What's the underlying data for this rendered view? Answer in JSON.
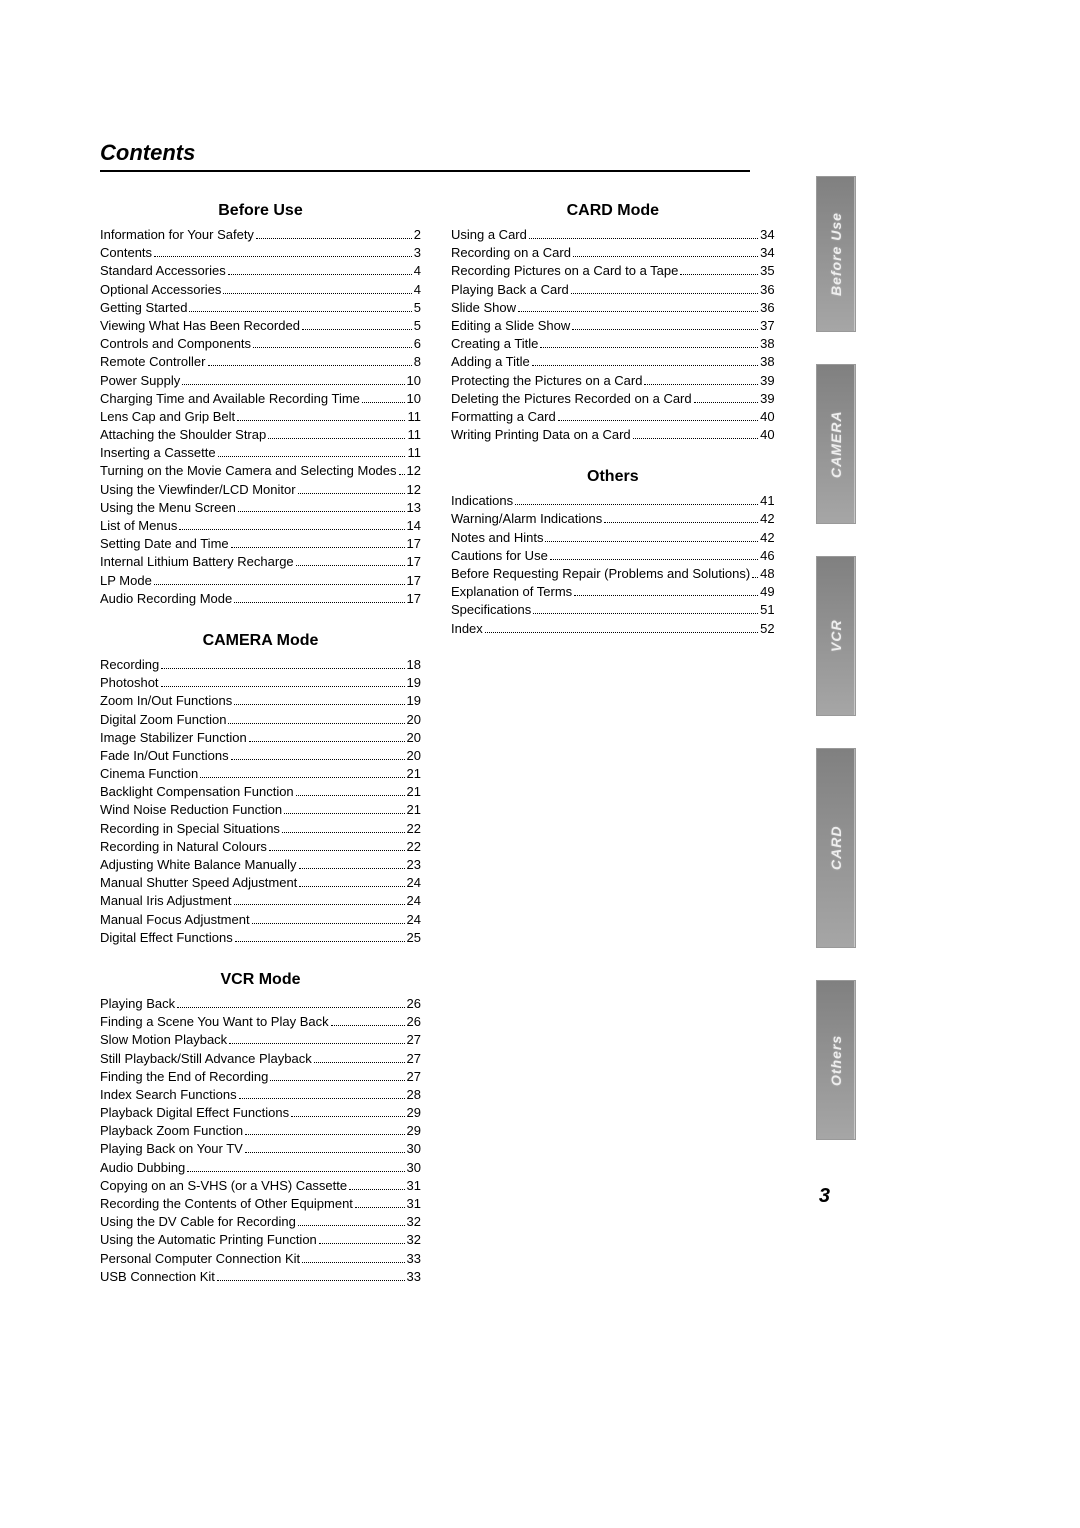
{
  "title": "Contents",
  "page_number": "3",
  "side_tabs": [
    "Before Use",
    "CAMERA",
    "VCR",
    "CARD",
    "Others"
  ],
  "columns": {
    "left": [
      {
        "heading": "Before Use",
        "entries": [
          {
            "label": "Information for Your Safety",
            "page": "2"
          },
          {
            "label": "Contents",
            "page": "3"
          },
          {
            "label": "Standard Accessories",
            "page": "4"
          },
          {
            "label": "Optional Accessories",
            "page": "4"
          },
          {
            "label": "Getting Started",
            "page": "5"
          },
          {
            "label": "Viewing What Has Been Recorded",
            "page": "5"
          },
          {
            "label": "Controls and Components",
            "page": "6"
          },
          {
            "label": "Remote Controller",
            "page": "8"
          },
          {
            "label": "Power Supply",
            "page": "10"
          },
          {
            "label": "Charging Time and Available Recording Time",
            "page": "10"
          },
          {
            "label": "Lens Cap and Grip Belt",
            "page": "11"
          },
          {
            "label": "Attaching the Shoulder Strap",
            "page": "11"
          },
          {
            "label": "Inserting a Cassette",
            "page": "11"
          },
          {
            "label": "Turning on the Movie Camera and Selecting Modes",
            "page": "12"
          },
          {
            "label": "Using the Viewfinder/LCD Monitor",
            "page": "12"
          },
          {
            "label": "Using the Menu Screen",
            "page": "13"
          },
          {
            "label": "List of Menus",
            "page": "14"
          },
          {
            "label": "Setting Date and Time",
            "page": "17"
          },
          {
            "label": "Internal Lithium Battery Recharge",
            "page": "17"
          },
          {
            "label": "LP Mode",
            "page": "17"
          },
          {
            "label": "Audio Recording Mode",
            "page": "17"
          }
        ]
      },
      {
        "heading": "CAMERA Mode",
        "entries": [
          {
            "label": "Recording",
            "page": "18"
          },
          {
            "label": "Photoshot",
            "page": "19"
          },
          {
            "label": "Zoom In/Out Functions",
            "page": "19"
          },
          {
            "label": "Digital Zoom Function",
            "page": "20"
          },
          {
            "label": "Image Stabilizer Function",
            "page": "20"
          },
          {
            "label": "Fade In/Out Functions",
            "page": "20"
          },
          {
            "label": "Cinema Function",
            "page": "21"
          },
          {
            "label": "Backlight Compensation Function",
            "page": "21"
          },
          {
            "label": "Wind Noise Reduction Function",
            "page": "21"
          },
          {
            "label": "Recording in Special Situations",
            "page": "22"
          },
          {
            "label": "Recording in Natural Colours",
            "page": "22"
          },
          {
            "label": "Adjusting White Balance Manually",
            "page": "23"
          },
          {
            "label": "Manual Shutter Speed Adjustment",
            "page": "24"
          },
          {
            "label": "Manual Iris Adjustment",
            "page": "24"
          },
          {
            "label": "Manual Focus Adjustment",
            "page": "24"
          },
          {
            "label": "Digital Effect Functions",
            "page": "25"
          }
        ]
      },
      {
        "heading": "VCR Mode",
        "entries": [
          {
            "label": "Playing Back",
            "page": "26"
          },
          {
            "label": "Finding a Scene You Want to Play Back",
            "page": "26"
          },
          {
            "label": "Slow Motion Playback",
            "page": "27"
          },
          {
            "label": "Still Playback/Still Advance Playback",
            "page": "27"
          },
          {
            "label": "Finding the End of Recording",
            "page": "27"
          },
          {
            "label": "Index Search Functions",
            "page": "28"
          },
          {
            "label": "Playback Digital Effect Functions",
            "page": "29"
          },
          {
            "label": "Playback Zoom Function",
            "page": "29"
          },
          {
            "label": "Playing Back on Your TV",
            "page": "30"
          },
          {
            "label": "Audio Dubbing",
            "page": "30"
          },
          {
            "label": "Copying on an S-VHS (or a VHS) Cassette",
            "page": "31"
          },
          {
            "label": "Recording the Contents of Other Equipment",
            "page": "31"
          },
          {
            "label": "Using the DV Cable for Recording",
            "page": "32"
          },
          {
            "label": "Using the Automatic Printing Function",
            "page": "32"
          },
          {
            "label": "Personal Computer Connection Kit",
            "page": "33"
          },
          {
            "label": "USB Connection Kit",
            "page": "33"
          }
        ]
      }
    ],
    "right": [
      {
        "heading": "CARD Mode",
        "entries": [
          {
            "label": "Using a Card",
            "page": "34"
          },
          {
            "label": "Recording on a Card",
            "page": "34"
          },
          {
            "label": "Recording Pictures on a Card to a Tape",
            "page": "35"
          },
          {
            "label": "Playing Back a Card",
            "page": "36"
          },
          {
            "label": "Slide Show",
            "page": "36"
          },
          {
            "label": "Editing a Slide Show",
            "page": "37"
          },
          {
            "label": "Creating a Title",
            "page": "38"
          },
          {
            "label": "Adding a Title",
            "page": "38"
          },
          {
            "label": "Protecting the Pictures on a Card",
            "page": "39"
          },
          {
            "label": "Deleting the Pictures Recorded on a Card",
            "page": "39"
          },
          {
            "label": "Formatting a Card",
            "page": "40"
          },
          {
            "label": "Writing Printing Data on a Card",
            "page": "40"
          }
        ]
      },
      {
        "heading": "Others",
        "entries": [
          {
            "label": "Indications",
            "page": "41"
          },
          {
            "label": "Warning/Alarm Indications",
            "page": "42"
          },
          {
            "label": "Notes and Hints",
            "page": "42"
          },
          {
            "label": "Cautions for Use",
            "page": "46"
          },
          {
            "label": "Before Requesting Repair (Problems and Solutions)",
            "page": "48"
          },
          {
            "label": "Explanation of Terms",
            "page": "49"
          },
          {
            "label": "Specifications",
            "page": "51"
          },
          {
            "label": "Index",
            "page": "52"
          }
        ]
      }
    ]
  }
}
